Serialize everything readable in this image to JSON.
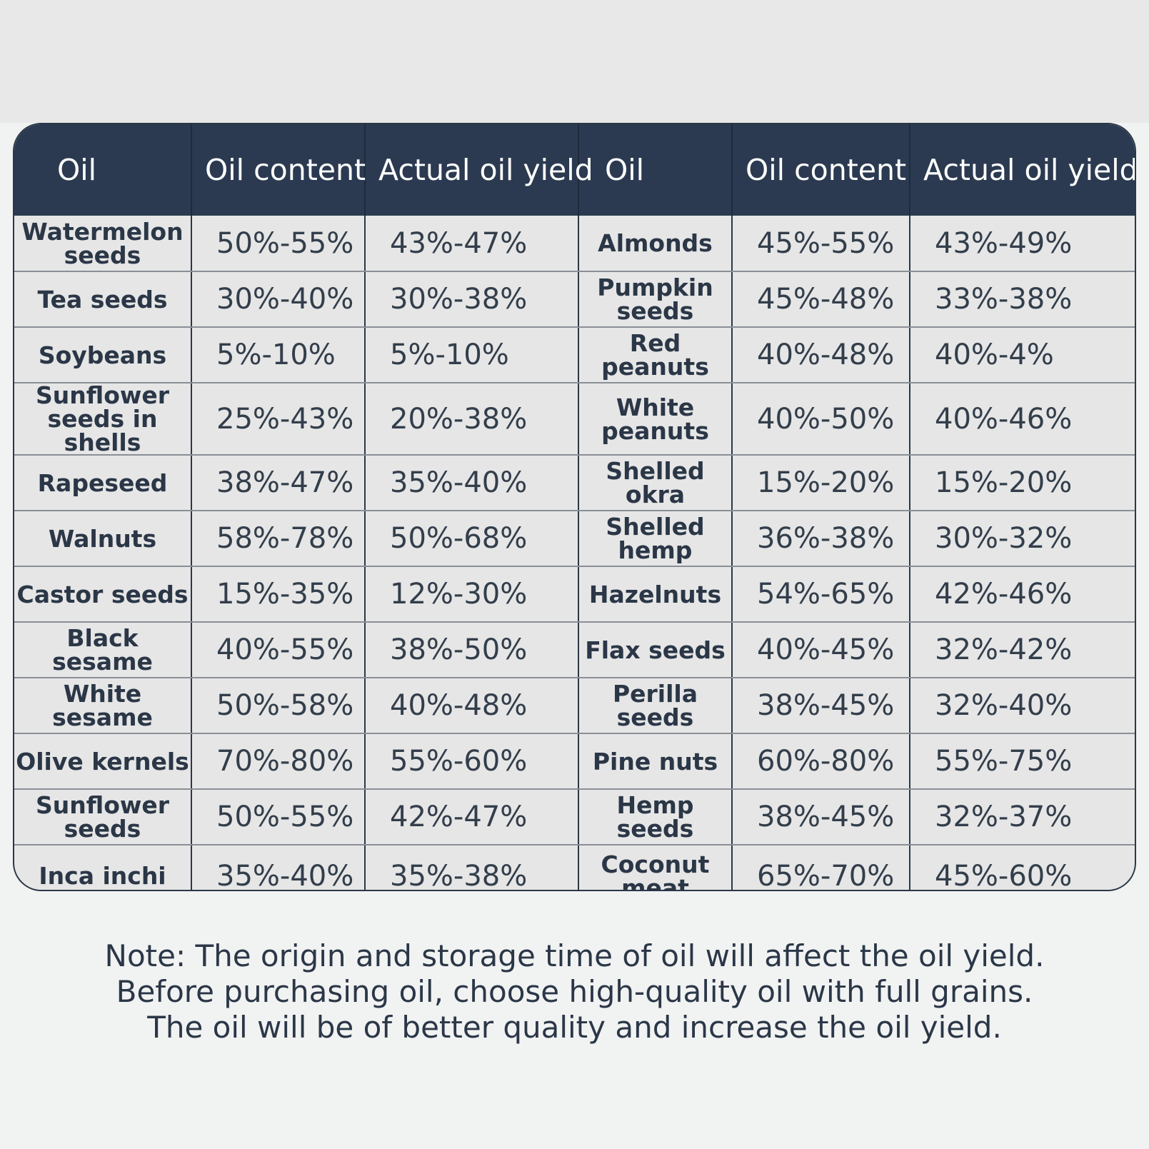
{
  "table": {
    "headers": [
      "Oil",
      "Oil content",
      "Actual oil yield",
      "Oil",
      "Oil content",
      "Actual oil yield"
    ],
    "rows": [
      [
        "Watermelon seeds",
        "50%-55%",
        "43%-47%",
        "Almonds",
        "45%-55%",
        "43%-49%"
      ],
      [
        "Tea seeds",
        "30%-40%",
        "30%-38%",
        "Pumpkin seeds",
        "45%-48%",
        "33%-38%"
      ],
      [
        "Soybeans",
        "5%-10%",
        "5%-10%",
        "Red peanuts",
        "40%-48%",
        "40%-4%"
      ],
      [
        "Sunflower seeds in shells",
        "25%-43%",
        "20%-38%",
        "White peanuts",
        "40%-50%",
        "40%-46%"
      ],
      [
        "Rapeseed",
        "38%-47%",
        "35%-40%",
        "Shelled okra",
        "15%-20%",
        "15%-20%"
      ],
      [
        "Walnuts",
        "58%-78%",
        "50%-68%",
        "Shelled hemp",
        "36%-38%",
        "30%-32%"
      ],
      [
        "Castor seeds",
        "15%-35%",
        "12%-30%",
        "Hazelnuts",
        "54%-65%",
        "42%-46%"
      ],
      [
        "Black sesame",
        "40%-55%",
        "38%-50%",
        "Flax seeds",
        "40%-45%",
        "32%-42%"
      ],
      [
        "White sesame",
        "50%-58%",
        "40%-48%",
        "Perilla seeds",
        "38%-45%",
        "32%-40%"
      ],
      [
        "Olive kernels",
        "70%-80%",
        "55%-60%",
        "Pine nuts",
        "60%-80%",
        "55%-75%"
      ],
      [
        "Sunflower seeds",
        "50%-55%",
        "42%-47%",
        "Hemp seeds",
        "38%-45%",
        "32%-37%"
      ],
      [
        "Inca inchi",
        "35%-40%",
        "35%-38%",
        "Coconut meat",
        "65%-70%",
        "45%-60%"
      ]
    ]
  },
  "note": {
    "line1": "Note: The origin and storage time of oil will affect the oil yield.",
    "line2": "Before purchasing oil, choose high-quality oil with full grains.",
    "line3": "The oil will be of better quality and increase the oil yield."
  },
  "colors": {
    "header_bg": "#2b3a50",
    "text": "#2b3747",
    "cell_bg": "#e6e6e6"
  }
}
